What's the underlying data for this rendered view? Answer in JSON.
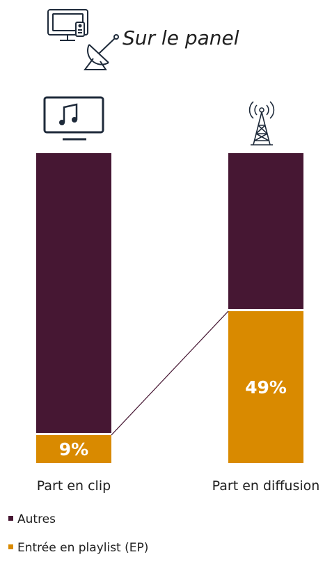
{
  "header": {
    "title": "Sur le panel",
    "icons": [
      "tv-icon",
      "satellite-dish-icon"
    ]
  },
  "chart_data": {
    "type": "bar",
    "stacked": true,
    "percent": true,
    "categories": [
      "Part en clip",
      "Part en diffusion"
    ],
    "category_icons": [
      "music-tv-icon",
      "radio-tower-icon"
    ],
    "series": [
      {
        "name": "Entrée en playlist (EP)",
        "values": [
          9,
          49
        ],
        "labels": [
          "9%",
          "49%"
        ]
      },
      {
        "name": "Autres",
        "values": [
          91,
          51
        ]
      }
    ],
    "connector_line": true,
    "ylim": [
      0,
      100
    ],
    "grid": false,
    "legend_position": "bottom-left"
  },
  "colors": {
    "ep": "#d98a00",
    "autres": "#461733",
    "icon": "#1e2a3a",
    "label_text": "#ffffff"
  },
  "legend": {
    "items": [
      {
        "label": "Autres",
        "color": "#461733"
      },
      {
        "label": "Entrée en playlist (EP)",
        "color": "#d98a00"
      }
    ]
  }
}
